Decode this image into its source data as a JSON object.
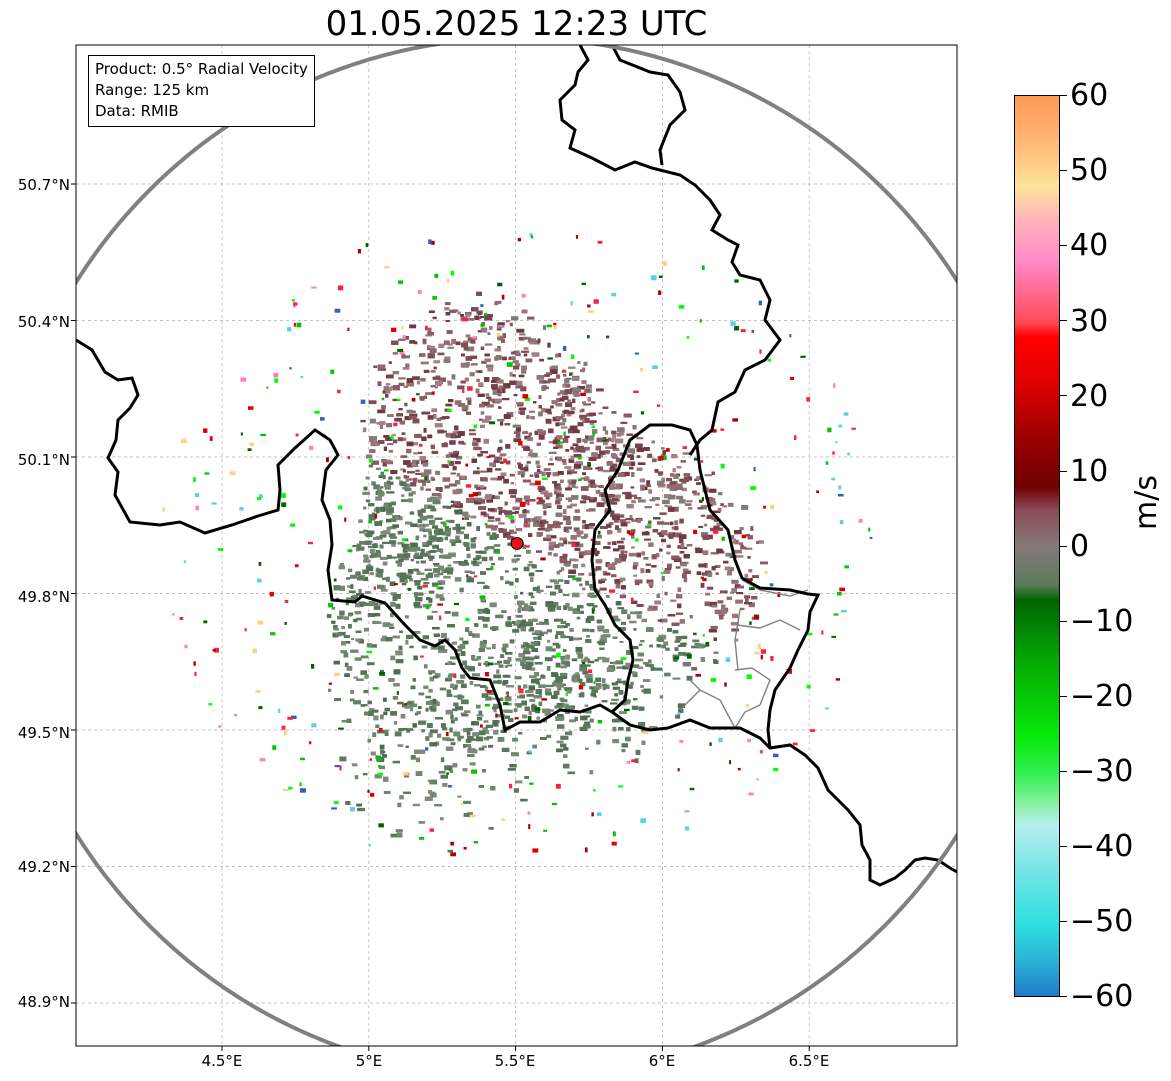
{
  "title": "01.05.2025 12:23 UTC",
  "info": {
    "product": "Product: 0.5° Radial Velocity",
    "range": "Range: 125 km",
    "data": "Data: RMIB"
  },
  "axes": {
    "lat_labels": [
      "50.7°N",
      "50.4°N",
      "50.1°N",
      "49.8°N",
      "49.5°N",
      "49.2°N",
      "48.9°N"
    ],
    "lon_labels": [
      "4.5°E",
      "5°E",
      "5.5°E",
      "6°E",
      "6.5°E"
    ],
    "lat_values": [
      50.7,
      50.4,
      50.1,
      49.8,
      49.5,
      49.2,
      48.9
    ],
    "lon_values": [
      4.5,
      5.0,
      5.5,
      6.0,
      6.5
    ]
  },
  "colorbar": {
    "unit": "m/s",
    "min": -60,
    "max": 60,
    "ticks": [
      "60",
      "50",
      "40",
      "30",
      "20",
      "10",
      "0",
      "−10",
      "−20",
      "−30",
      "−40",
      "−50",
      "−60"
    ],
    "stops": [
      {
        "v": -60,
        "c": "#1f77c8"
      },
      {
        "v": -55,
        "c": "#2bb4d8"
      },
      {
        "v": -50,
        "c": "#2fe0e0"
      },
      {
        "v": -42,
        "c": "#7fe6e6"
      },
      {
        "v": -37,
        "c": "#b8eef0"
      },
      {
        "v": -34,
        "c": "#88f0a0"
      },
      {
        "v": -30,
        "c": "#30f050"
      },
      {
        "v": -25,
        "c": "#08e808"
      },
      {
        "v": -15,
        "c": "#05a805"
      },
      {
        "v": -7,
        "c": "#006400"
      },
      {
        "v": -5,
        "c": "#5a7a5a"
      },
      {
        "v": 0,
        "c": "#857a78"
      },
      {
        "v": 5,
        "c": "#8a4a55"
      },
      {
        "v": 8,
        "c": "#700000"
      },
      {
        "v": 15,
        "c": "#a00000"
      },
      {
        "v": 22,
        "c": "#e00000"
      },
      {
        "v": 28,
        "c": "#ff0000"
      },
      {
        "v": 30,
        "c": "#ff4a5a"
      },
      {
        "v": 38,
        "c": "#ff8ac8"
      },
      {
        "v": 44,
        "c": "#ffb8b8"
      },
      {
        "v": 48,
        "c": "#ffe49a"
      },
      {
        "v": 55,
        "c": "#ffb070"
      },
      {
        "v": 60,
        "c": "#ff9a55"
      }
    ]
  },
  "radar": {
    "site_lat": 49.91,
    "site_lon": 5.505,
    "site_color": "#e8121b",
    "range_ring_color": "#808080"
  }
}
